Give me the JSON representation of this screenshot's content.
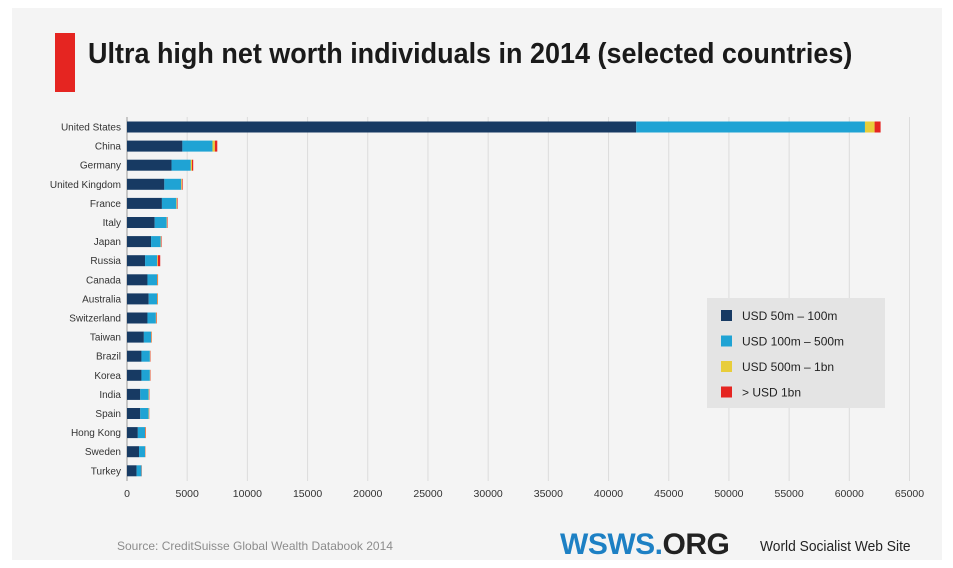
{
  "chart_data": {
    "type": "bar",
    "orientation": "horizontal",
    "stacked": true,
    "title": "Ultra high net worth individuals in 2014 (selected countries)",
    "source": "Source: CreditSuisse Global Wealth Databook 2014",
    "categories": [
      "United States",
      "China",
      "Germany",
      "United Kingdom",
      "France",
      "Italy",
      "Japan",
      "Russia",
      "Canada",
      "Australia",
      "Switzerland",
      "Taiwan",
      "Brazil",
      "Korea",
      "India",
      "Spain",
      "Hong Kong",
      "Sweden",
      "Turkey"
    ],
    "series": [
      {
        "name": "USD 50m – 100m",
        "color": "#173a63",
        "values": [
          42300,
          4600,
          3700,
          3100,
          2900,
          2300,
          2000,
          1500,
          1700,
          1800,
          1700,
          1400,
          1200,
          1200,
          1100,
          1100,
          900,
          1000,
          800
        ]
      },
      {
        "name": "USD 100m – 500m",
        "color": "#1fa3d4",
        "values": [
          19000,
          2500,
          1600,
          1400,
          1200,
          1000,
          800,
          1000,
          800,
          700,
          700,
          600,
          700,
          700,
          700,
          700,
          600,
          500,
          400
        ]
      },
      {
        "name": "USD 500m – 1bn",
        "color": "#e8cd3a",
        "values": [
          800,
          200,
          100,
          60,
          50,
          40,
          40,
          60,
          40,
          40,
          40,
          30,
          30,
          30,
          30,
          30,
          30,
          20,
          10
        ]
      },
      {
        "name": "> USD 1bn",
        "color": "#e52521",
        "values": [
          500,
          200,
          100,
          60,
          50,
          40,
          40,
          200,
          40,
          30,
          40,
          30,
          30,
          30,
          30,
          20,
          40,
          20,
          20
        ]
      }
    ],
    "xlim": [
      0,
      65000
    ],
    "xticks": [
      "0",
      "5000",
      "10000",
      "15000",
      "20000",
      "25000",
      "30000",
      "35000",
      "40000",
      "45000",
      "50000",
      "55000",
      "60000",
      "65000"
    ],
    "grid": "vertical",
    "legend_position": "right"
  },
  "branding": {
    "logo_main": "WSWS.",
    "logo_org": "ORG",
    "site_name": "World Socialist Web Site",
    "logo_color": "#1d80c4"
  }
}
